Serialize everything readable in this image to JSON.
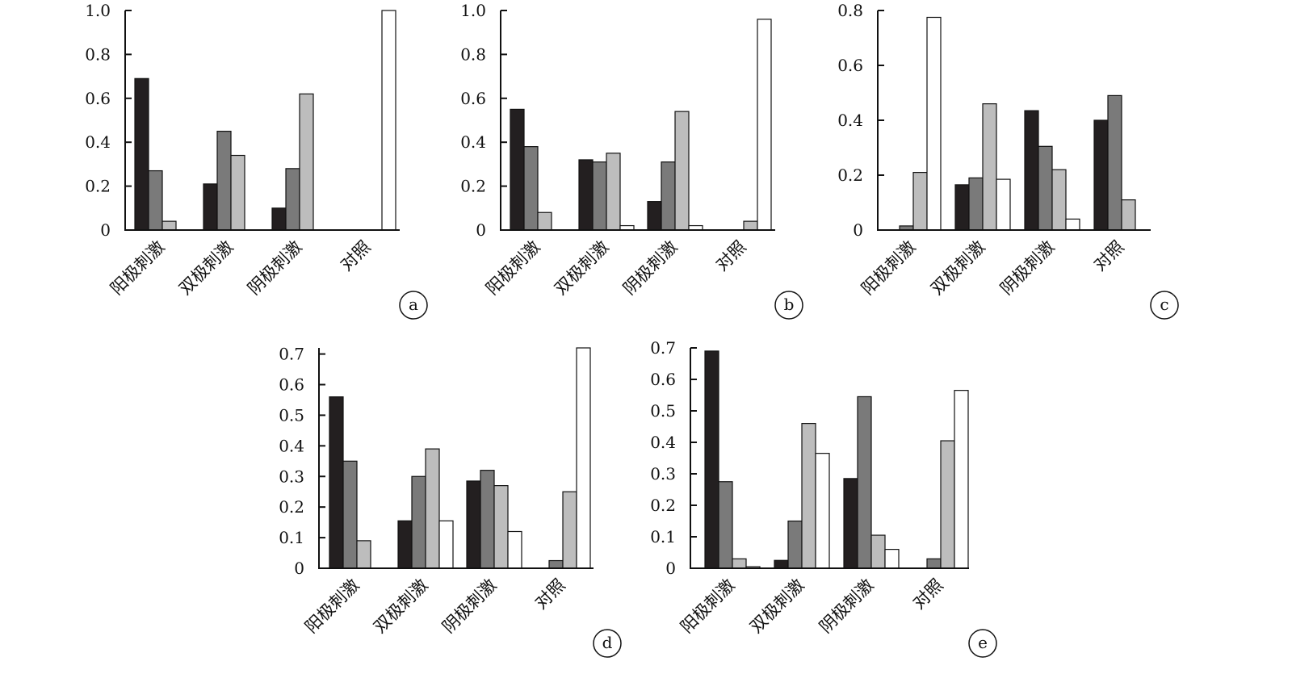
{
  "colors": {
    "series": [
      "#231f20",
      "#7a7a7a",
      "#bdbdbd",
      "#ffffff"
    ],
    "axis": "#111111"
  },
  "chart_data": [
    {
      "type": "bar",
      "panel": "a",
      "categories": [
        "阳极刺激",
        "双极刺激",
        "阴极刺激",
        "对照"
      ],
      "ylim": [
        0,
        1.0
      ],
      "yticks": [
        "0",
        "0.2",
        "0.4",
        "0.6",
        "0.8",
        "1.0"
      ],
      "series": [
        {
          "values": [
            0.69,
            0.21,
            0.1,
            0
          ]
        },
        {
          "values": [
            0.27,
            0.45,
            0.28,
            0
          ]
        },
        {
          "values": [
            0.04,
            0.34,
            0.62,
            0
          ]
        },
        {
          "values": [
            0,
            0,
            0,
            1.0
          ]
        }
      ]
    },
    {
      "type": "bar",
      "panel": "b",
      "categories": [
        "阳极刺激",
        "双极刺激",
        "阴极刺激",
        "对照"
      ],
      "ylim": [
        0,
        1.0
      ],
      "yticks": [
        "0",
        "0.2",
        "0.4",
        "0.6",
        "0.8",
        "1.0"
      ],
      "series": [
        {
          "values": [
            0.55,
            0.32,
            0.13,
            0
          ]
        },
        {
          "values": [
            0.38,
            0.31,
            0.31,
            0
          ]
        },
        {
          "values": [
            0.08,
            0.35,
            0.54,
            0.04
          ]
        },
        {
          "values": [
            0,
            0.02,
            0.02,
            0.96
          ]
        }
      ]
    },
    {
      "type": "bar",
      "panel": "c",
      "categories": [
        "阳极刺激",
        "双极刺激",
        "阴极刺激",
        "对照"
      ],
      "ylim": [
        0,
        0.8
      ],
      "yticks": [
        "0",
        "0.2",
        "0.4",
        "0.6",
        "0.8"
      ],
      "series": [
        {
          "values": [
            0,
            0.165,
            0.435,
            0.4
          ]
        },
        {
          "values": [
            0.015,
            0.19,
            0.305,
            0.49
          ]
        },
        {
          "values": [
            0.21,
            0.46,
            0.22,
            0.11
          ]
        },
        {
          "values": [
            0.775,
            0.185,
            0.04,
            0
          ]
        }
      ]
    },
    {
      "type": "bar",
      "panel": "d",
      "categories": [
        "阳极刺激",
        "双极刺激",
        "阴极刺激",
        "对照"
      ],
      "ylim": [
        0,
        0.72
      ],
      "yticks": [
        "0",
        "0.1",
        "0.2",
        "0.3",
        "0.4",
        "0.5",
        "0.6",
        "0.7"
      ],
      "series": [
        {
          "values": [
            0.56,
            0.155,
            0.285,
            0
          ]
        },
        {
          "values": [
            0.35,
            0.3,
            0.32,
            0.025
          ]
        },
        {
          "values": [
            0.09,
            0.39,
            0.27,
            0.25
          ]
        },
        {
          "values": [
            0,
            0.155,
            0.12,
            0.72
          ]
        }
      ]
    },
    {
      "type": "bar",
      "panel": "e",
      "categories": [
        "阳极刺激",
        "双极刺激",
        "阴极刺激",
        "对照"
      ],
      "ylim": [
        0,
        0.7
      ],
      "yticks": [
        "0",
        "0.1",
        "0.2",
        "0.3",
        "0.4",
        "0.5",
        "0.6",
        "0.7"
      ],
      "series": [
        {
          "values": [
            0.69,
            0.025,
            0.285,
            0
          ]
        },
        {
          "values": [
            0.275,
            0.15,
            0.545,
            0.03
          ]
        },
        {
          "values": [
            0.03,
            0.46,
            0.105,
            0.405
          ]
        },
        {
          "values": [
            0.005,
            0.365,
            0.06,
            0.565
          ]
        }
      ]
    }
  ]
}
